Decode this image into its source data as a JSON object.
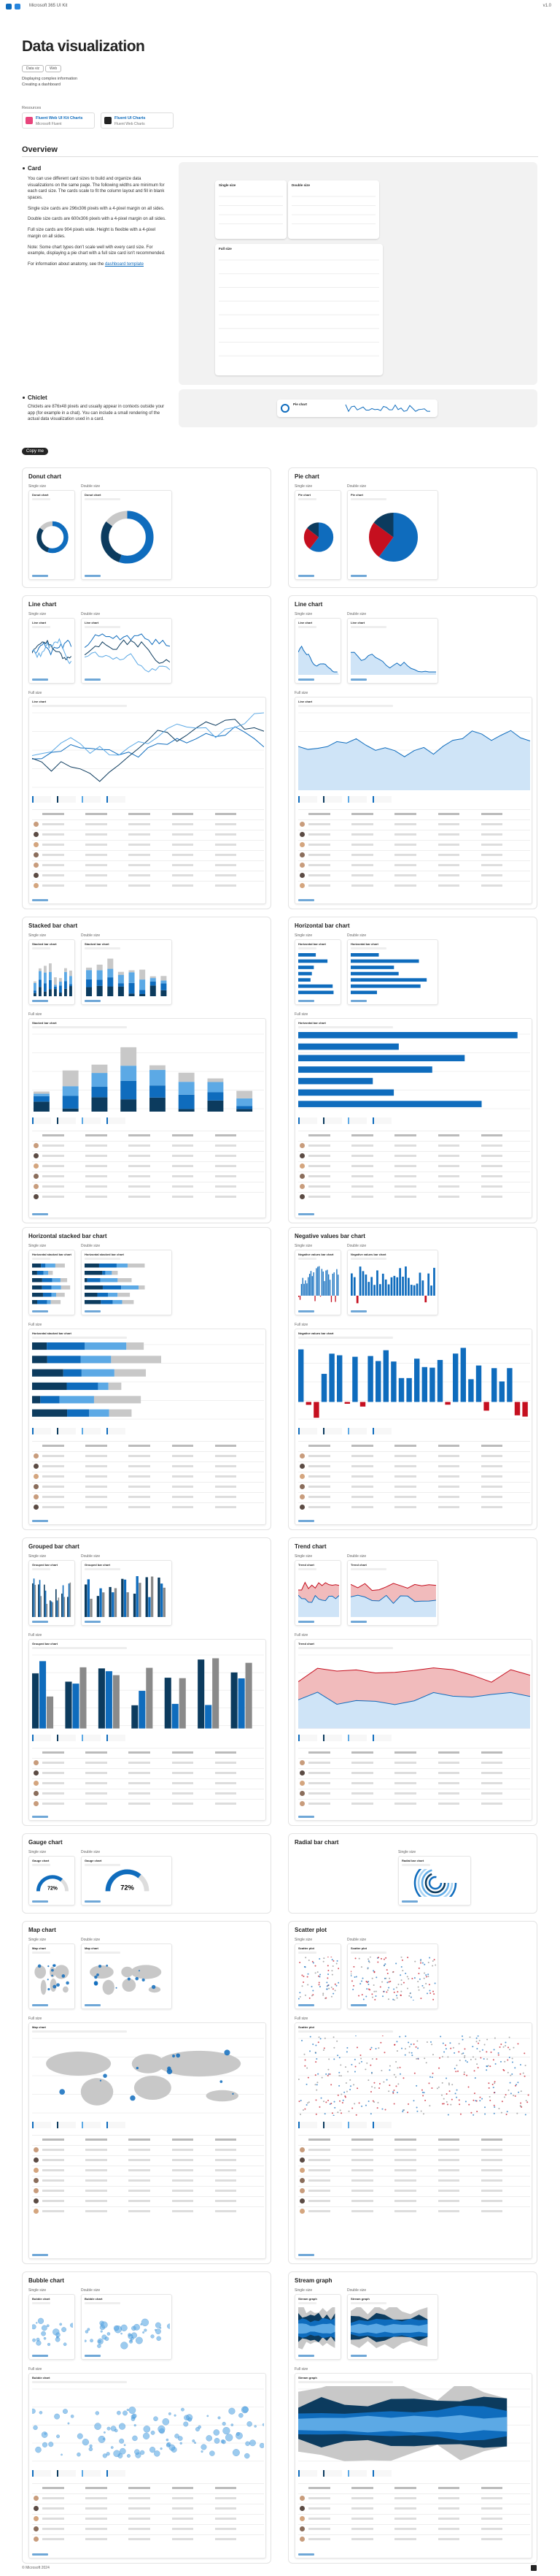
{
  "header": {
    "brand": "Microsoft 365 UI Kit",
    "version": "v1.0"
  },
  "page": {
    "title": "Data visualization",
    "tags": [
      "Data viz",
      "Web"
    ],
    "bullets": [
      "Displaying complex information",
      "Creating a dashboard"
    ]
  },
  "resources": {
    "label": "Resources",
    "items": [
      {
        "title": "Fluent Web UI Kit Charts",
        "subtitle": "Microsoft Fluent"
      },
      {
        "title": "Fluent UI Charts",
        "subtitle": "Fluent Web Charts"
      }
    ]
  },
  "overview": {
    "heading": "Overview",
    "card": {
      "heading": "Card",
      "paragraphs": [
        "You can use different card sizes to build and organize data visualizations on the same page. The following widths are minimum for each card size. The cards scale to fit the column layout and fill in blank spaces.",
        "Single size cards are 296x306 pixels with a 4-pixel margin on all sides.",
        "Double size cards are 600x306 pixels with a 4-pixel margin on all sides.",
        "Full size cards are 904 pixels wide. Height is flexible with a 4-pixel margin on all sides.",
        "Note: Some chart types don't scale well with every card size. For example, displaying a pie chart with a full size card isn't recommended."
      ],
      "link_intro": "For information about anatomy, see the",
      "link": "dashboard template",
      "mock_labels": [
        "Single size",
        "Double size",
        "Full size"
      ]
    },
    "chiclet": {
      "heading": "Chiclet",
      "paragraph": "Chiclets are 876x48 pixels and usually appear in contexts outside your app (for example in a chat). You can include a small rendering of the actual data visualization used in a card.",
      "mock_title": "Pie chart"
    }
  },
  "copy_me": "Copy me",
  "sections": [
    {
      "title": "Donut chart",
      "kind": "donut",
      "labels": [
        "Single size",
        "Double size"
      ]
    },
    {
      "title": "Pie chart",
      "kind": "pie",
      "labels": [
        "Single size",
        "Double size"
      ]
    },
    {
      "title": "Line chart",
      "kind": "line",
      "labels": [
        "Single size",
        "Double size",
        "Full size"
      ]
    },
    {
      "title": "Line chart",
      "kind": "area",
      "labels": [
        "Single size",
        "Double size",
        "Full size"
      ]
    },
    {
      "title": "Stacked bar chart",
      "kind": "stacked",
      "labels": [
        "Single size",
        "Double size",
        "Full size"
      ]
    },
    {
      "title": "Horizontal bar chart",
      "kind": "hbar",
      "labels": [
        "Single size",
        "Double size",
        "Full size"
      ]
    },
    {
      "title": "Horizontal stacked bar chart",
      "kind": "hstack",
      "labels": [
        "Single size",
        "Double size",
        "Full size"
      ]
    },
    {
      "title": "Negative values bar chart",
      "kind": "neg",
      "labels": [
        "Single size",
        "Double size",
        "Full size"
      ]
    },
    {
      "title": "Grouped bar chart",
      "kind": "grouped",
      "labels": [
        "Single size",
        "Double size",
        "Full size"
      ]
    },
    {
      "title": "Trend chart",
      "kind": "trend",
      "labels": [
        "Single size",
        "Double size",
        "Full size"
      ]
    },
    {
      "title": "Gauge chart",
      "kind": "gauge",
      "labels": [
        "Single size",
        "Double size"
      ],
      "value_label": "72%"
    },
    {
      "title": "Radial bar chart",
      "kind": "radial",
      "labels": [
        "Single size"
      ]
    },
    {
      "title": "Map chart",
      "kind": "map",
      "labels": [
        "Single size",
        "Double size",
        "Full size"
      ]
    },
    {
      "title": "Scatter plot",
      "kind": "scatter",
      "labels": [
        "Single size",
        "Double size",
        "Full size"
      ]
    },
    {
      "title": "Bubble chart",
      "kind": "bubble",
      "labels": [
        "Single size",
        "Double size",
        "Full size"
      ]
    },
    {
      "title": "Stream graph",
      "kind": "stream",
      "labels": [
        "Single size",
        "Double size",
        "Full size"
      ]
    }
  ],
  "footer": "© Microsoft 2024"
}
